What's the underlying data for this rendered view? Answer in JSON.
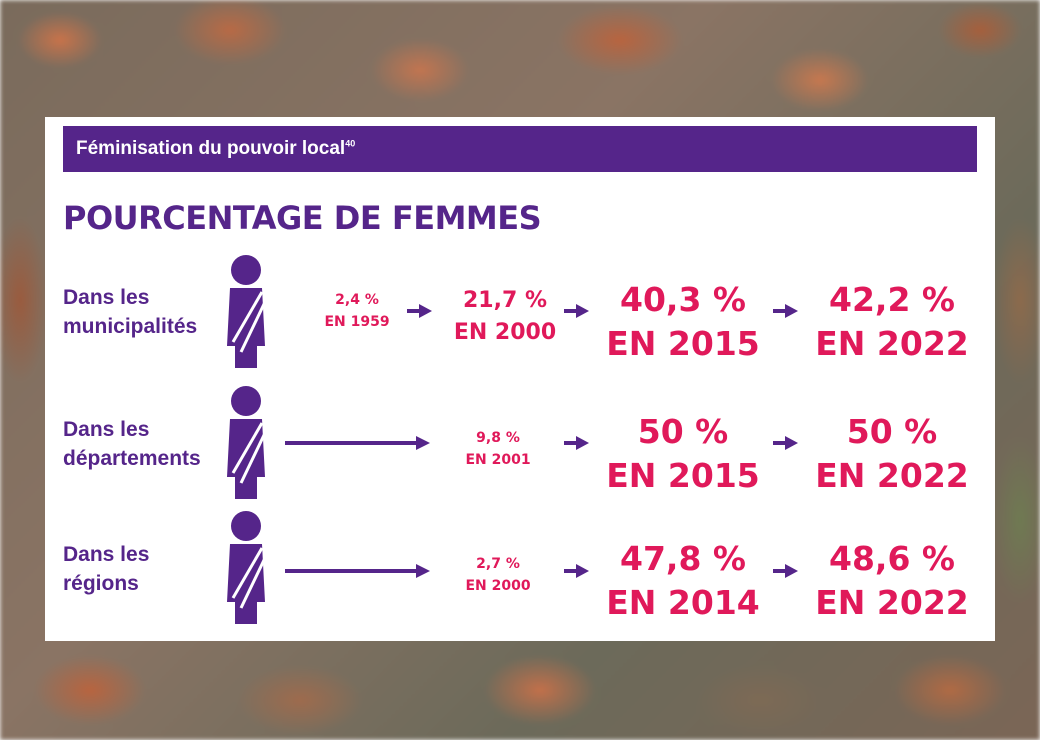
{
  "card": {
    "banner_title": "Féminisation du pouvoir local",
    "banner_footnote": "40",
    "heading": "POURCENTAGE DE FEMMES"
  },
  "colors": {
    "purple": "#55258a",
    "pink": "#e0195a"
  },
  "rows": [
    {
      "label_line1": "Dans les",
      "label_line2": "municipalités",
      "icon": "woman-figure-icon",
      "stats": [
        {
          "value": "2,4 %",
          "year": "EN 1959"
        },
        {
          "value": "21,7 %",
          "year": "EN 2000"
        },
        {
          "value": "40,3 %",
          "year": "EN 2015"
        },
        {
          "value": "42,2 %",
          "year": "EN 2022"
        }
      ]
    },
    {
      "label_line1": "Dans les",
      "label_line2": "départements",
      "icon": "woman-figure-icon",
      "stats": [
        {
          "value": "9,8 %",
          "year": "EN 2001"
        },
        {
          "value": "50 %",
          "year": "EN 2015"
        },
        {
          "value": "50 %",
          "year": "EN 2022"
        }
      ]
    },
    {
      "label_line1": "Dans les",
      "label_line2": "régions",
      "icon": "woman-figure-icon",
      "stats": [
        {
          "value": "2,7 %",
          "year": "EN 2000"
        },
        {
          "value": "47,8 %",
          "year": "EN 2014"
        },
        {
          "value": "48,6 %",
          "year": "EN 2022"
        }
      ]
    }
  ]
}
